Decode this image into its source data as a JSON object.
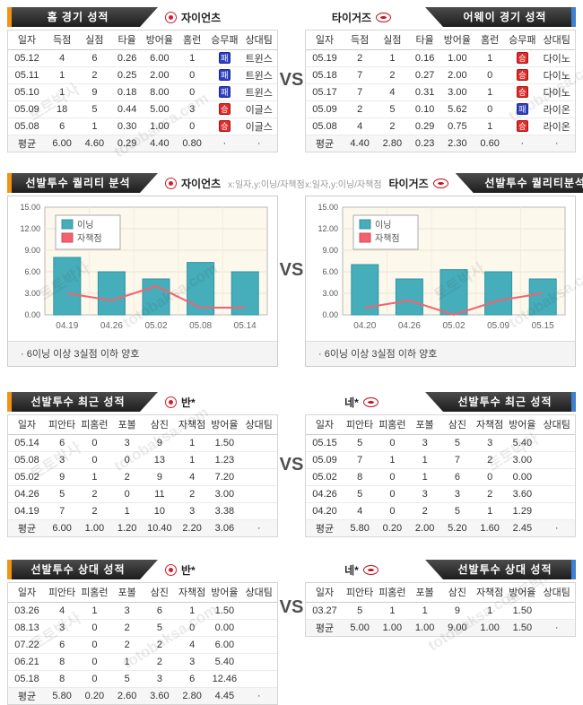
{
  "vs_label": "VS",
  "watermark": {
    "name": "토토박사",
    "domain": "totobaksa.com"
  },
  "badges": {
    "win": "승",
    "loss": "패"
  },
  "colors": {
    "accent_orange": "#f29413",
    "accent_blue": "#3d7fd0",
    "bar_teal": "#46adba",
    "line_red": "#f2636f",
    "win_red": "#e02b2b",
    "loss_blue": "#2f3fc4"
  },
  "sections": [
    {
      "left": {
        "header": "홈 경기 성적",
        "team": "자이언츠",
        "columns": [
          "일자",
          "득점",
          "실점",
          "타율",
          "방어율",
          "홈런",
          "승무패",
          "상대팀"
        ],
        "rows": [
          [
            "05.12",
            "4",
            "6",
            "0.26",
            "6.00",
            "1",
            "패",
            "트윈스"
          ],
          [
            "05.11",
            "1",
            "2",
            "0.25",
            "2.00",
            "0",
            "패",
            "트윈스"
          ],
          [
            "05.10",
            "1",
            "9",
            "0.18",
            "8.00",
            "0",
            "패",
            "트윈스"
          ],
          [
            "05.09",
            "18",
            "5",
            "0.44",
            "5.00",
            "3",
            "승",
            "이글스"
          ],
          [
            "05.08",
            "6",
            "1",
            "0.30",
            "1.00",
            "0",
            "승",
            "이글스"
          ]
        ],
        "avg": [
          "평균",
          "6.00",
          "4.60",
          "0.29",
          "4.40",
          "0.80",
          "·",
          "·"
        ]
      },
      "right": {
        "header": "어웨이 경기 성적",
        "team": "타이거즈",
        "columns": [
          "일자",
          "득점",
          "실점",
          "타율",
          "방어율",
          "홈런",
          "승무패",
          "상대팀"
        ],
        "rows": [
          [
            "05.19",
            "2",
            "1",
            "0.16",
            "1.00",
            "1",
            "승",
            "다이노"
          ],
          [
            "05.18",
            "7",
            "2",
            "0.27",
            "2.00",
            "0",
            "승",
            "다이노"
          ],
          [
            "05.17",
            "7",
            "4",
            "0.31",
            "3.00",
            "1",
            "승",
            "다이노"
          ],
          [
            "05.09",
            "2",
            "5",
            "0.10",
            "5.62",
            "0",
            "패",
            "라이온"
          ],
          [
            "05.08",
            "4",
            "2",
            "0.29",
            "0.75",
            "1",
            "승",
            "라이온"
          ]
        ],
        "avg": [
          "평균",
          "4.40",
          "2.80",
          "0.23",
          "2.30",
          "0.60",
          "·",
          "·"
        ]
      }
    },
    {
      "left": {
        "header": "선발투수 퀄리티 분석",
        "team": "자이언츠",
        "axis_note": "x:일자,y:이닝/자책점",
        "footnote": "· 6이닝 이상 3실점 이하 양호"
      },
      "right": {
        "header": "선발투수 퀄리티분석",
        "team": "타이거즈",
        "axis_note": "x:일자,y:이닝/자책점",
        "footnote": "· 6이닝 이상 3실점 이하 양호"
      }
    },
    {
      "left": {
        "header": "선발투수 최근 성적",
        "team": "반*",
        "columns": [
          "일자",
          "피안타",
          "피홈런",
          "포볼",
          "삼진",
          "자책점",
          "방어율",
          "상대팀"
        ],
        "rows": [
          [
            "05.14",
            "6",
            "0",
            "3",
            "9",
            "1",
            "1.50",
            ""
          ],
          [
            "05.08",
            "3",
            "0",
            "0",
            "13",
            "1",
            "1.23",
            ""
          ],
          [
            "05.02",
            "9",
            "1",
            "2",
            "9",
            "4",
            "7.20",
            ""
          ],
          [
            "04.26",
            "5",
            "2",
            "0",
            "11",
            "2",
            "3.00",
            ""
          ],
          [
            "04.19",
            "7",
            "2",
            "1",
            "10",
            "3",
            "3.38",
            ""
          ]
        ],
        "avg": [
          "평균",
          "6.00",
          "1.00",
          "1.20",
          "10.40",
          "2.20",
          "3.06",
          "·"
        ]
      },
      "right": {
        "header": "선발투수 최근 성적",
        "team": "네*",
        "columns": [
          "일자",
          "피안타",
          "피홈런",
          "포볼",
          "삼진",
          "자책점",
          "방어율",
          "상대팀"
        ],
        "rows": [
          [
            "05.15",
            "5",
            "0",
            "3",
            "5",
            "3",
            "5.40",
            ""
          ],
          [
            "05.09",
            "7",
            "1",
            "1",
            "7",
            "2",
            "3.00",
            ""
          ],
          [
            "05.02",
            "8",
            "0",
            "1",
            "6",
            "0",
            "0.00",
            ""
          ],
          [
            "04.26",
            "5",
            "0",
            "3",
            "3",
            "2",
            "3.60",
            ""
          ],
          [
            "04.20",
            "4",
            "0",
            "2",
            "5",
            "1",
            "1.29",
            ""
          ]
        ],
        "avg": [
          "평균",
          "5.80",
          "0.20",
          "2.00",
          "5.20",
          "1.60",
          "2.45",
          "·"
        ]
      }
    },
    {
      "left": {
        "header": "선발투수 상대 성적",
        "team": "반*",
        "columns": [
          "일자",
          "피안타",
          "피홈런",
          "포볼",
          "삼진",
          "자책점",
          "방어율",
          "상대팀"
        ],
        "rows": [
          [
            "03.26",
            "4",
            "1",
            "3",
            "6",
            "1",
            "1.50",
            ""
          ],
          [
            "08.13",
            "3",
            "0",
            "2",
            "5",
            "0",
            "0.00",
            ""
          ],
          [
            "07.22",
            "6",
            "0",
            "2",
            "2",
            "4",
            "6.00",
            ""
          ],
          [
            "06.21",
            "8",
            "0",
            "1",
            "2",
            "3",
            "5.40",
            ""
          ],
          [
            "05.18",
            "8",
            "0",
            "5",
            "3",
            "6",
            "12.46",
            ""
          ]
        ],
        "avg": [
          "평균",
          "5.80",
          "0.20",
          "2.60",
          "3.60",
          "2.80",
          "4.45",
          "·"
        ]
      },
      "right": {
        "header": "선발투수 상대 성적",
        "team": "네*",
        "columns": [
          "일자",
          "피안타",
          "피홈런",
          "포볼",
          "삼진",
          "자책점",
          "방어율",
          "상대팀"
        ],
        "rows": [
          [
            "03.27",
            "5",
            "1",
            "1",
            "9",
            "1",
            "1.50",
            ""
          ]
        ],
        "avg": [
          "평균",
          "5.00",
          "1.00",
          "1.00",
          "9.00",
          "1.00",
          "1.50",
          "·"
        ]
      }
    }
  ],
  "chart_data": [
    {
      "type": "bar",
      "title": "선발투수 퀄리티 분석 - 자이언츠",
      "xlabel": "일자",
      "ylabel": "이닝/자책점",
      "categories": [
        "04.19",
        "04.26",
        "05.02",
        "05.08",
        "05.14"
      ],
      "series": [
        {
          "name": "이닝",
          "type": "bar",
          "values": [
            8,
            6,
            5,
            7.3,
            6
          ]
        },
        {
          "name": "자책점",
          "type": "line",
          "values": [
            3,
            2,
            4,
            1,
            1
          ]
        }
      ],
      "ylim": [
        0,
        15
      ],
      "yticks": [
        0,
        3,
        6,
        9,
        12,
        15
      ],
      "grid": true,
      "legend_position": "top-left"
    },
    {
      "type": "bar",
      "title": "선발투수 퀄리티분석 - 타이거즈",
      "xlabel": "일자",
      "ylabel": "이닝/자책점",
      "categories": [
        "04.20",
        "04.26",
        "05.02",
        "05.09",
        "05.15"
      ],
      "series": [
        {
          "name": "이닝",
          "type": "bar",
          "values": [
            7,
            5,
            6.3,
            6,
            5
          ]
        },
        {
          "name": "자책점",
          "type": "line",
          "values": [
            1,
            2,
            0,
            2,
            3
          ]
        }
      ],
      "ylim": [
        0,
        15
      ],
      "yticks": [
        0,
        3,
        6,
        9,
        12,
        15
      ],
      "grid": true,
      "legend_position": "top-left"
    }
  ]
}
